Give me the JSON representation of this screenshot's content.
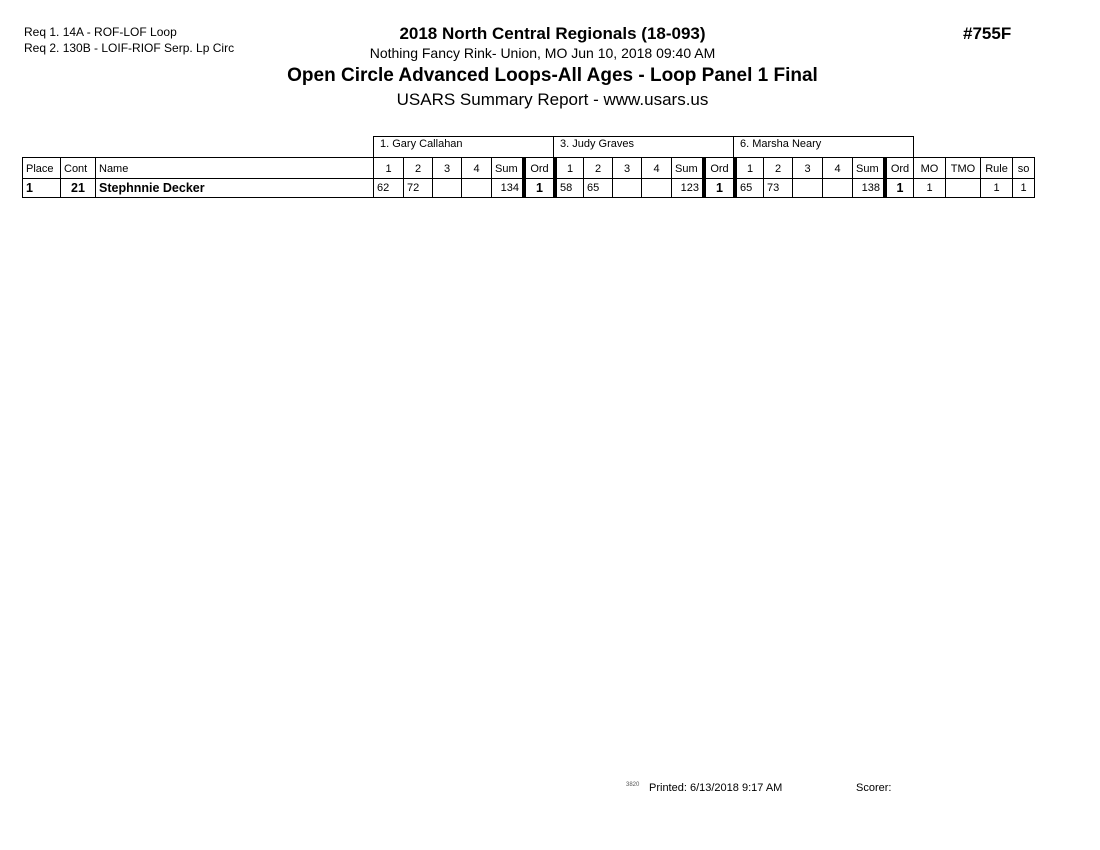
{
  "requirements": [
    "Req  1.  14A - ROF-LOF Loop",
    "Req  2.  130B - LOIF-RIOF Serp. Lp Circ"
  ],
  "header": {
    "title": "2018 North Central Regionals (18-093)",
    "subtitle": "Nothing Fancy Rink- Union, MO  Jun 10, 2018  09:40 AM",
    "event": "Open Circle Advanced Loops-All Ages - Loop Panel 1 Final",
    "report": "USARS Summary Report - www.usars.us",
    "event_code": "#755F"
  },
  "table": {
    "judges": [
      "1.  Gary Callahan",
      "3.  Judy Graves",
      "6.  Marsha Neary"
    ],
    "columns": [
      "Place",
      "Cont",
      "Name",
      "1",
      "2",
      "3",
      "4",
      "Sum",
      "Ord",
      "1",
      "2",
      "3",
      "4",
      "Sum",
      "Ord",
      "1",
      "2",
      "3",
      "4",
      "Sum",
      "Ord",
      "MO",
      "TMO",
      "Rule",
      "so"
    ],
    "rows": [
      [
        "1",
        "21",
        "Stephnnie Decker",
        "62",
        "72",
        "",
        "",
        "134",
        "1",
        "58",
        "65",
        "",
        "",
        "123",
        "1",
        "65",
        "73",
        "",
        "",
        "138",
        "1",
        "1",
        "",
        "1",
        "1"
      ]
    ]
  },
  "footer": {
    "code": "3820",
    "printed": "Printed:  6/13/2018  9:17 AM",
    "scorer": "Scorer:"
  }
}
